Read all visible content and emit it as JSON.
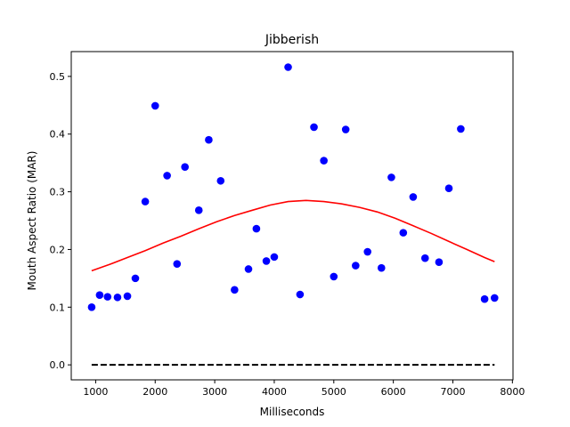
{
  "chart_data": {
    "type": "scatter",
    "title": "Jibberish",
    "xlabel": "Milliseconds",
    "ylabel": "Mouth Aspect Ratio (MAR)",
    "xlim": [
      590,
      8010
    ],
    "ylim": [
      -0.026,
      0.543
    ],
    "xticks": [
      1000,
      2000,
      3000,
      4000,
      5000,
      6000,
      7000,
      8000
    ],
    "yticks": [
      0.0,
      0.1,
      0.2,
      0.3,
      0.4,
      0.5
    ],
    "grid": false,
    "legend": "none",
    "series": [
      {
        "kind": "scatter",
        "color": "#0000ff",
        "x": [
          933,
          1067,
          1200,
          1367,
          1533,
          1667,
          1833,
          2000,
          2200,
          2367,
          2500,
          2733,
          2900,
          3100,
          3333,
          3567,
          3700,
          3867,
          4000,
          4233,
          4433,
          4667,
          4833,
          5000,
          5200,
          5367,
          5567,
          5800,
          5967,
          6167,
          6333,
          6533,
          6767,
          6933,
          7133,
          7533,
          7700
        ],
        "y": [
          0.1,
          0.121,
          0.118,
          0.117,
          0.119,
          0.15,
          0.283,
          0.449,
          0.328,
          0.175,
          0.343,
          0.268,
          0.39,
          0.319,
          0.13,
          0.166,
          0.236,
          0.18,
          0.187,
          0.516,
          0.122,
          0.412,
          0.354,
          0.153,
          0.408,
          0.172,
          0.196,
          0.168,
          0.325,
          0.229,
          0.291,
          0.185,
          0.178,
          0.306,
          0.409,
          0.114,
          0.116
        ]
      },
      {
        "kind": "line",
        "color": "#ff0000",
        "x": [
          933,
          1233,
          1533,
          1833,
          2133,
          2433,
          2733,
          3033,
          3333,
          3633,
          3933,
          4233,
          4533,
          4833,
          5133,
          5433,
          5733,
          6033,
          6333,
          6633,
          6933,
          7233,
          7533,
          7700
        ],
        "y": [
          0.163,
          0.174,
          0.186,
          0.198,
          0.211,
          0.223,
          0.236,
          0.248,
          0.259,
          0.268,
          0.277,
          0.283,
          0.285,
          0.283,
          0.279,
          0.273,
          0.265,
          0.254,
          0.241,
          0.228,
          0.214,
          0.2,
          0.186,
          0.179
        ]
      },
      {
        "kind": "dashed-line",
        "color": "#000000",
        "x": [
          933,
          7700
        ],
        "y": [
          0.0,
          0.0
        ]
      }
    ]
  }
}
